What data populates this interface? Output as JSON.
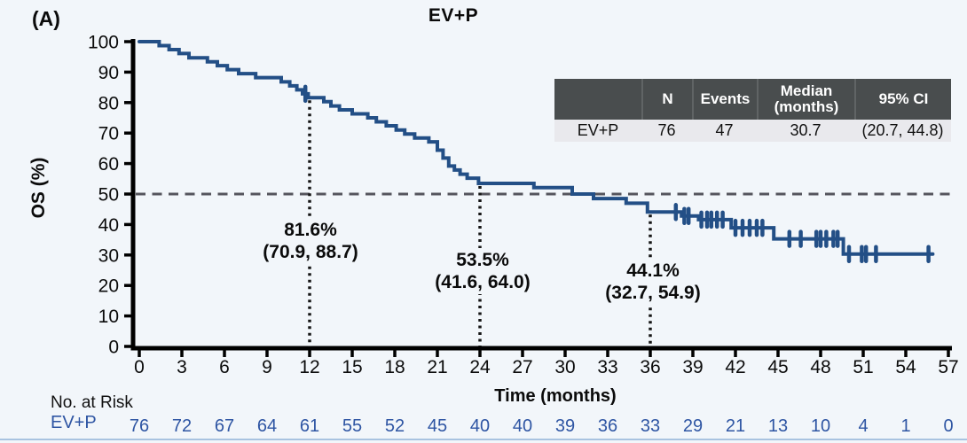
{
  "colors": {
    "background": "#f2f6fa",
    "curve": "#234f86",
    "censor": "#234f86",
    "axis": "#000000",
    "tick_label": "#0b0b0b",
    "median_dashed_line": "#55555d",
    "landmark_dotted_line": "#151515",
    "at_risk_text": "#2e55a3",
    "table_header_bg": "#494d4e",
    "table_header_text": "#ffffff",
    "table_row_bg": "#e9e9ed",
    "bottom_rule": "#a9c3e0"
  },
  "chart_data": {
    "type": "line",
    "subtype": "kaplan-meier-step",
    "panel_label": "(A)",
    "title": "EV+P",
    "xlabel": "Time (months)",
    "ylabel": "OS (%)",
    "xlim": [
      0,
      57
    ],
    "ylim": [
      0,
      100
    ],
    "xticks": [
      0,
      3,
      6,
      9,
      12,
      15,
      18,
      21,
      24,
      27,
      30,
      33,
      36,
      39,
      42,
      45,
      48,
      51,
      54,
      57
    ],
    "yticks": [
      0,
      10,
      20,
      30,
      40,
      50,
      60,
      70,
      80,
      90,
      100
    ],
    "grid": "off",
    "median_reference_pct": 50,
    "series": [
      {
        "name": "EV+P",
        "steps": [
          [
            0,
            100
          ],
          [
            1.4,
            98.7
          ],
          [
            2.1,
            97.4
          ],
          [
            2.8,
            96.1
          ],
          [
            3.5,
            94.7
          ],
          [
            4.8,
            93.4
          ],
          [
            5.5,
            92.1
          ],
          [
            6.2,
            90.8
          ],
          [
            7.0,
            89.5
          ],
          [
            8.2,
            88.2
          ],
          [
            10.0,
            86.8
          ],
          [
            10.6,
            85.5
          ],
          [
            11.1,
            84.2
          ],
          [
            11.5,
            82.9
          ],
          [
            11.9,
            81.6
          ],
          [
            13.0,
            80.3
          ],
          [
            13.5,
            78.9
          ],
          [
            14.1,
            77.6
          ],
          [
            15.0,
            76.3
          ],
          [
            16.1,
            75.0
          ],
          [
            16.7,
            73.7
          ],
          [
            17.4,
            72.4
          ],
          [
            18.1,
            71.0
          ],
          [
            18.7,
            69.7
          ],
          [
            19.4,
            68.4
          ],
          [
            20.4,
            67.1
          ],
          [
            21.0,
            64.4
          ],
          [
            21.4,
            61.8
          ],
          [
            21.8,
            59.2
          ],
          [
            22.2,
            57.9
          ],
          [
            22.6,
            56.5
          ],
          [
            23.1,
            55.2
          ],
          [
            23.9,
            53.5
          ],
          [
            27.8,
            52.1
          ],
          [
            30.5,
            50.0
          ],
          [
            32.0,
            48.5
          ],
          [
            34.3,
            47.0
          ],
          [
            35.8,
            44.1
          ],
          [
            38.2,
            42.8
          ],
          [
            39.4,
            41.6
          ],
          [
            41.7,
            38.9
          ],
          [
            44.7,
            35.3
          ],
          [
            49.6,
            30.3
          ],
          [
            55.9,
            30.3
          ]
        ],
        "censor_marks": [
          [
            11.7,
            82.9
          ],
          [
            37.8,
            44.1
          ],
          [
            38.4,
            42.8
          ],
          [
            38.7,
            42.8
          ],
          [
            39.6,
            41.6
          ],
          [
            40.0,
            41.6
          ],
          [
            40.3,
            41.6
          ],
          [
            40.7,
            41.6
          ],
          [
            41.1,
            41.6
          ],
          [
            42.0,
            38.9
          ],
          [
            42.5,
            38.9
          ],
          [
            43.0,
            38.9
          ],
          [
            43.5,
            38.9
          ],
          [
            43.9,
            38.9
          ],
          [
            45.8,
            35.3
          ],
          [
            46.6,
            35.3
          ],
          [
            47.7,
            35.3
          ],
          [
            48.0,
            35.3
          ],
          [
            48.4,
            35.3
          ],
          [
            48.9,
            35.3
          ],
          [
            49.2,
            35.3
          ],
          [
            50.0,
            30.3
          ],
          [
            50.9,
            30.3
          ],
          [
            51.2,
            30.3
          ],
          [
            51.9,
            30.3
          ],
          [
            55.6,
            30.3
          ]
        ]
      }
    ],
    "landmarks": [
      {
        "t": 12,
        "value": 81.6,
        "pct": "81.6%",
        "ci": "(70.9, 88.7)"
      },
      {
        "t": 24,
        "value": 53.5,
        "pct": "53.5%",
        "ci": "(41.6, 64.0)"
      },
      {
        "t": 36,
        "value": 44.1,
        "pct": "44.1%",
        "ci": "(32.7, 54.9)"
      }
    ],
    "summary_table": {
      "headers": [
        "",
        "N",
        "Events",
        "Median (months)",
        "95% CI"
      ],
      "row": [
        "EV+P",
        "76",
        "47",
        "30.7",
        "(20.7, 44.8)"
      ]
    },
    "at_risk": {
      "label": "No. at Risk",
      "row_label": "EV+P",
      "values": [
        76,
        72,
        67,
        64,
        61,
        55,
        52,
        45,
        40,
        40,
        39,
        36,
        33,
        29,
        21,
        13,
        10,
        4,
        1,
        0
      ]
    }
  }
}
